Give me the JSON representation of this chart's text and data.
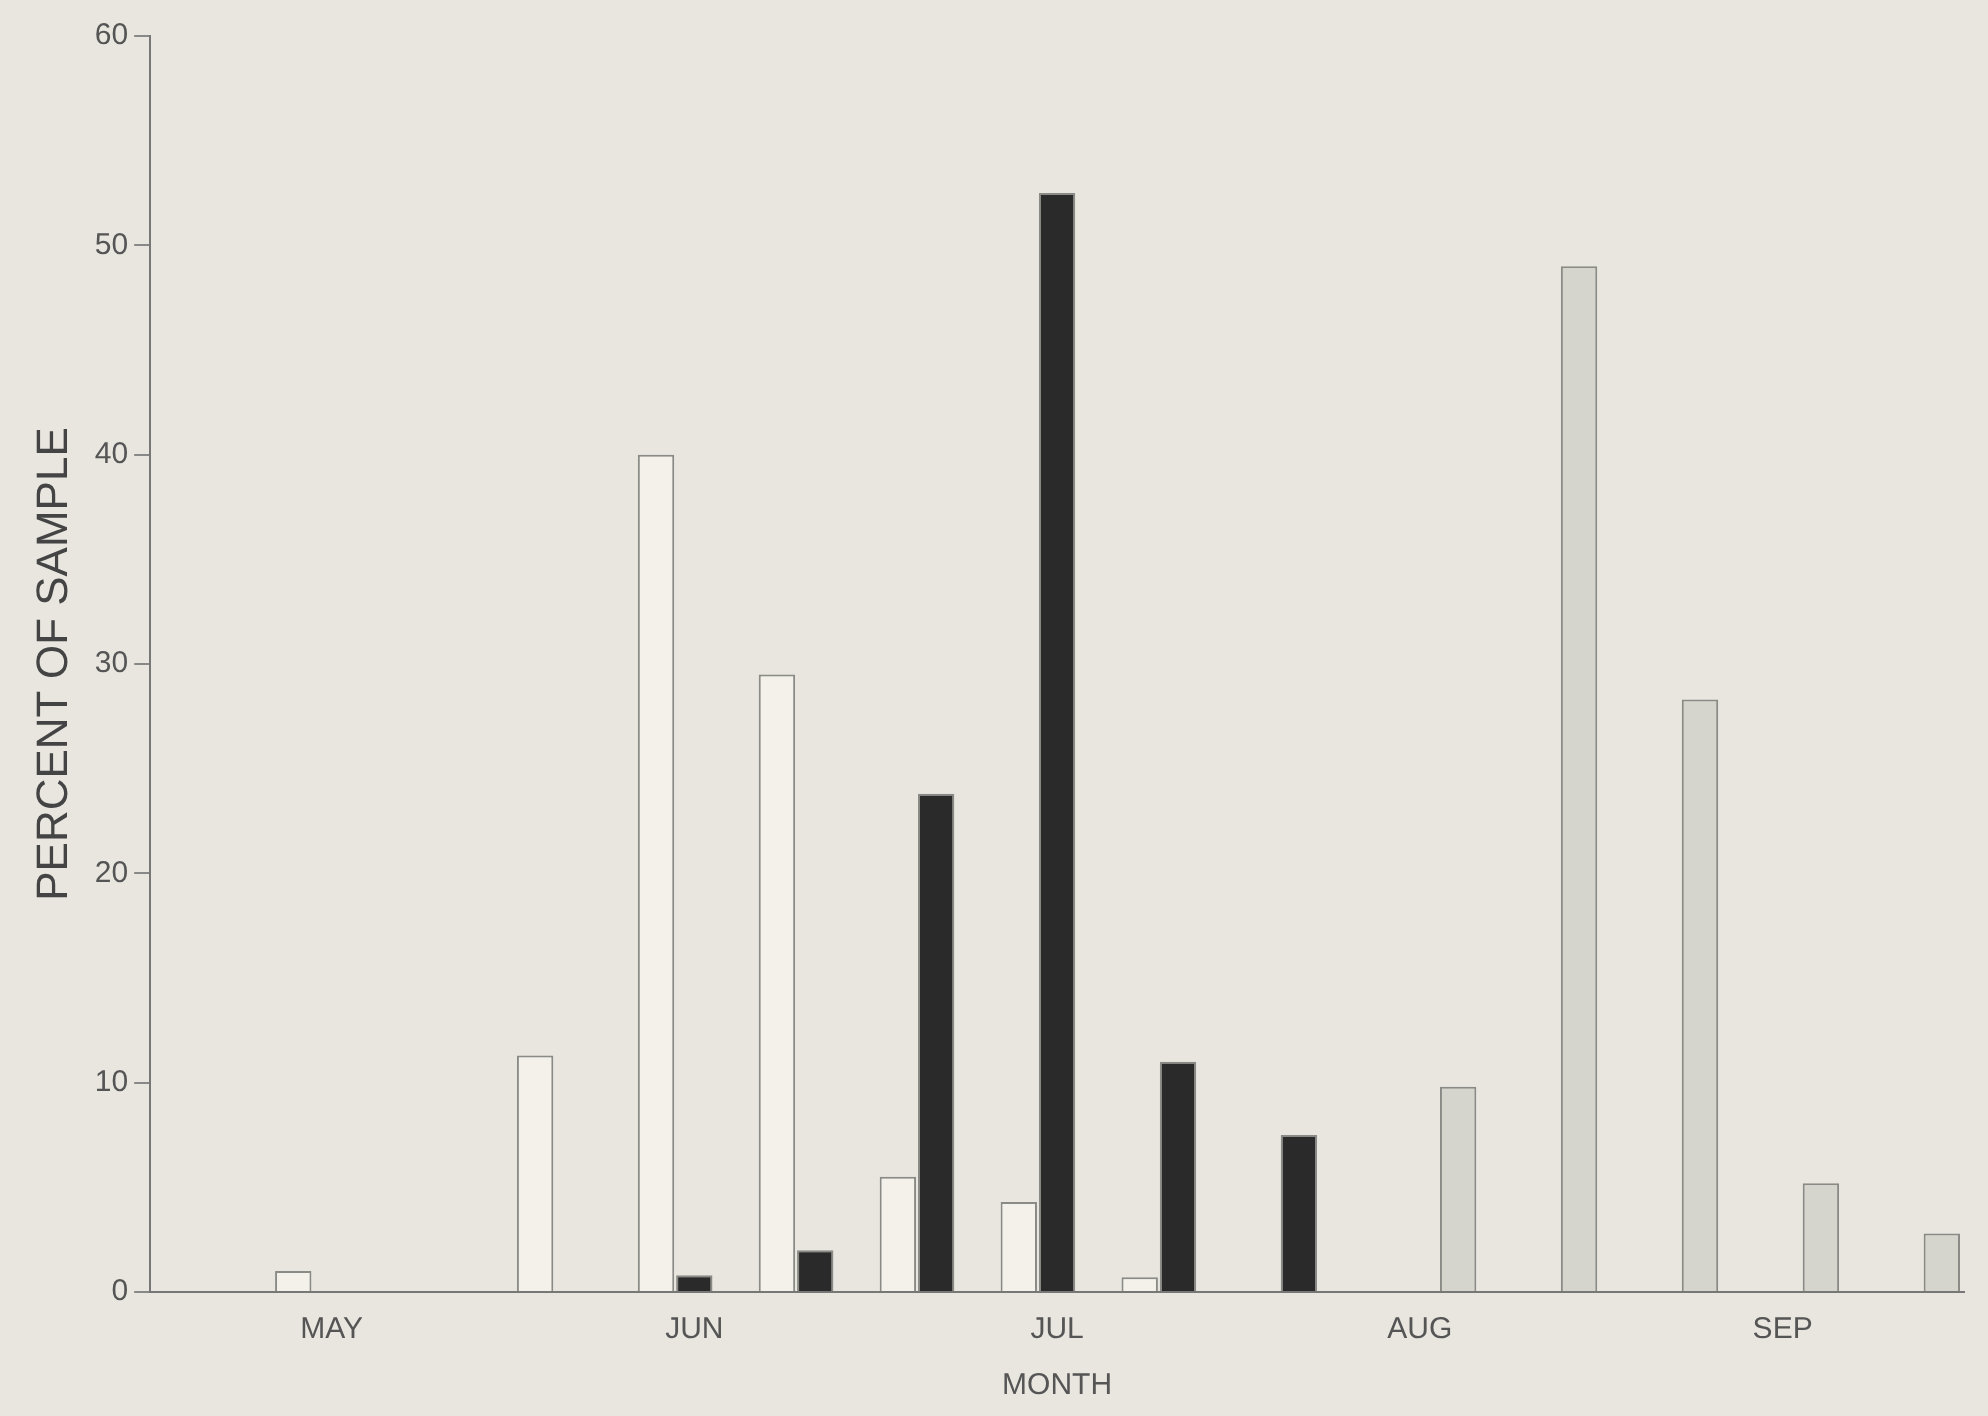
{
  "chart_data": {
    "type": "bar",
    "xlabel": "MONTH",
    "ylabel": "PERCENT OF SAMPLE",
    "categories": [
      null,
      "MAY",
      null,
      null,
      "JUN",
      null,
      null,
      "JUL",
      null,
      null,
      "AUG",
      null,
      null,
      "SEP",
      null
    ],
    "series": [
      {
        "color": "#f3f1ea",
        "values": [
          null,
          1,
          null,
          11.3,
          40,
          29.5,
          5.5,
          4.3,
          0.7,
          null,
          null,
          null,
          null,
          null,
          null
        ]
      },
      {
        "color": "#2a2a2a",
        "values": [
          null,
          null,
          null,
          null,
          0.8,
          2,
          23.8,
          52.5,
          11,
          7.5,
          null,
          null,
          null,
          null,
          null
        ]
      },
      {
        "color": "#d6d5cd",
        "values": [
          null,
          null,
          null,
          null,
          null,
          null,
          null,
          null,
          null,
          null,
          9.8,
          49,
          28.3,
          5.2,
          2.8
        ]
      }
    ],
    "ylim": [
      0,
      60
    ],
    "yticks": [
      0,
      10,
      20,
      30,
      40,
      50,
      60
    ],
    "grid": false,
    "legend": false
  }
}
